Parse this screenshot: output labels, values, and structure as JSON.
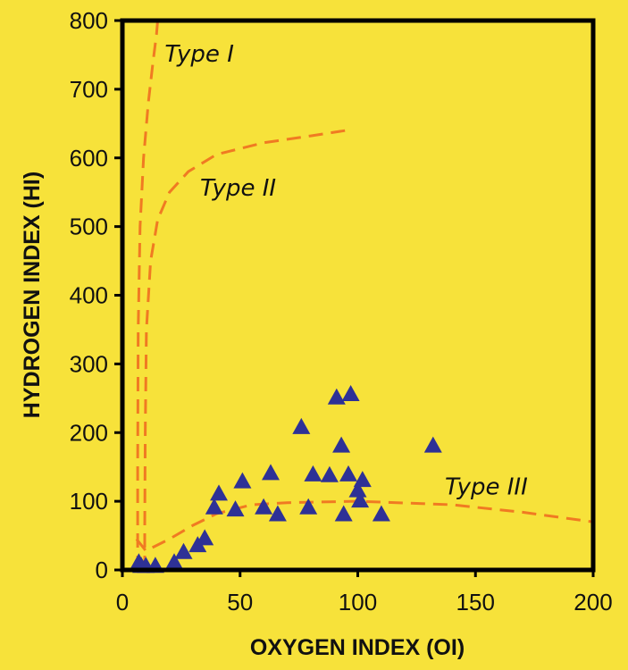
{
  "chart_data": {
    "type": "scatter",
    "xlabel": "OXYGEN INDEX (OI)",
    "ylabel": "HYDROGEN INDEX (HI)",
    "xlim": [
      0,
      200
    ],
    "ylim": [
      0,
      800
    ],
    "xticks": [
      0,
      50,
      100,
      150,
      200
    ],
    "yticks": [
      0,
      100,
      200,
      300,
      400,
      500,
      600,
      700,
      800
    ],
    "grid": false,
    "colors": {
      "background": "#f7e23a",
      "points": "#2e3196",
      "curves": "#f07a22",
      "frame": "#000000"
    },
    "marker": "triangle",
    "points": [
      [
        7,
        10
      ],
      [
        8,
        5
      ],
      [
        10,
        5
      ],
      [
        14,
        5
      ],
      [
        22,
        10
      ],
      [
        26,
        25
      ],
      [
        32,
        35
      ],
      [
        35,
        45
      ],
      [
        39,
        90
      ],
      [
        41,
        110
      ],
      [
        48,
        87
      ],
      [
        51,
        128
      ],
      [
        60,
        90
      ],
      [
        63,
        140
      ],
      [
        66,
        80
      ],
      [
        76,
        207
      ],
      [
        79,
        90
      ],
      [
        81,
        138
      ],
      [
        88,
        137
      ],
      [
        91,
        250
      ],
      [
        93,
        180
      ],
      [
        94,
        80
      ],
      [
        96,
        138
      ],
      [
        97,
        255
      ],
      [
        100,
        115
      ],
      [
        101,
        100
      ],
      [
        102,
        130
      ],
      [
        110,
        80
      ],
      [
        132,
        180
      ]
    ],
    "reference_curves": [
      {
        "label": "Type I",
        "points": [
          [
            6.5,
            0
          ],
          [
            6.5,
            150
          ],
          [
            6.7,
            350
          ],
          [
            7.5,
            500
          ],
          [
            9,
            600
          ],
          [
            11,
            680
          ],
          [
            13,
            740
          ],
          [
            14.5,
            780
          ],
          [
            15,
            800
          ]
        ]
      },
      {
        "label": "Type II",
        "points": [
          [
            9.5,
            0
          ],
          [
            9.5,
            60
          ],
          [
            9.7,
            200
          ],
          [
            10.2,
            350
          ],
          [
            12,
            450
          ],
          [
            15,
            510
          ],
          [
            20,
            550
          ],
          [
            28,
            580
          ],
          [
            40,
            605
          ],
          [
            60,
            622
          ],
          [
            80,
            632
          ],
          [
            95,
            640
          ]
        ]
      },
      {
        "label": "Type III",
        "points": [
          [
            6,
            45
          ],
          [
            10,
            28
          ],
          [
            20,
            45
          ],
          [
            30,
            65
          ],
          [
            40,
            82
          ],
          [
            55,
            95
          ],
          [
            70,
            98
          ],
          [
            100,
            100
          ],
          [
            140,
            95
          ],
          [
            170,
            84
          ],
          [
            200,
            70
          ]
        ]
      }
    ],
    "curve_labels": [
      {
        "text": "Type I",
        "x": 18,
        "y": 740
      },
      {
        "text": "Type II",
        "x": 33,
        "y": 545
      },
      {
        "text": "Type III",
        "x": 137,
        "y": 110
      }
    ]
  }
}
